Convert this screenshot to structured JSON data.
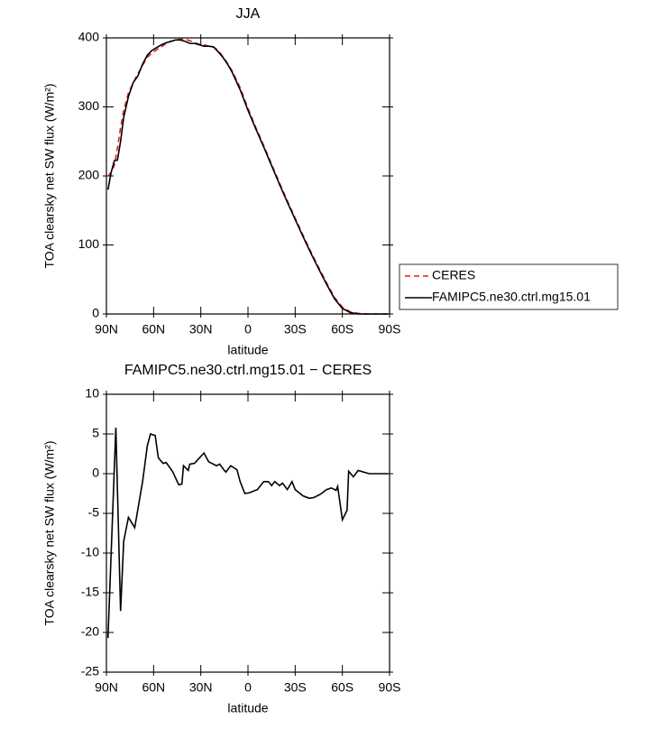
{
  "chart_data": [
    {
      "type": "line",
      "title": "JJA",
      "xlabel": "latitude",
      "ylabel": "TOA clearsky net SW flux (W/m²)",
      "xlim": [
        90,
        -90
      ],
      "xticks": [
        {
          "value": 90,
          "label": "90N"
        },
        {
          "value": 60,
          "label": "60N"
        },
        {
          "value": 30,
          "label": "30N"
        },
        0,
        {
          "value": -30,
          "label": "30S"
        },
        {
          "value": -60,
          "label": "60S"
        },
        {
          "value": -90,
          "label": "90S"
        }
      ],
      "ylim": [
        0,
        400
      ],
      "yticks": [
        0,
        100,
        200,
        300,
        400
      ],
      "legend": "right",
      "x": [
        89,
        87,
        85,
        83,
        81,
        79,
        76,
        73,
        70,
        67,
        64,
        61,
        58,
        55,
        52,
        49,
        46,
        43,
        40,
        37,
        34,
        31,
        28,
        25,
        22,
        19,
        16,
        13,
        10,
        5,
        0,
        -5,
        -10,
        -15,
        -20,
        -25,
        -30,
        -35,
        -40,
        -45,
        -50,
        -55,
        -60,
        -65,
        -70,
        -75,
        -80,
        -85,
        -89
      ],
      "series": [
        {
          "name": "CERES",
          "color": "#e41a1c",
          "dash": true,
          "values": [
            200,
            205,
            215,
            240,
            270,
            295,
            320,
            335,
            348,
            360,
            372,
            378,
            383,
            387,
            392,
            395,
            397,
            398,
            398,
            396,
            393,
            391,
            390,
            388,
            387,
            382,
            373,
            363,
            352,
            328,
            298,
            270,
            244,
            217,
            190,
            164,
            139,
            114,
            90,
            67,
            45,
            24,
            10,
            3,
            1,
            0,
            0,
            0,
            0
          ]
        },
        {
          "name": "FAMIPC5.ne30.ctrl.mg15.01",
          "color": "#000000",
          "dash": false,
          "values": [
            180,
            205,
            222,
            223,
            250,
            285,
            315,
            335,
            345,
            362,
            375,
            382,
            386,
            390,
            393,
            395,
            397,
            397,
            395,
            392,
            392,
            390,
            388,
            388,
            387,
            380,
            372,
            362,
            350,
            325,
            295,
            268,
            242,
            215,
            188,
            162,
            137,
            112,
            88,
            65,
            43,
            22,
            8,
            2,
            0,
            0,
            0,
            0,
            0
          ]
        }
      ]
    },
    {
      "type": "line",
      "title": "FAMIPC5.ne30.ctrl.mg15.01 − CERES",
      "xlabel": "latitude",
      "ylabel": "TOA clearsky net SW flux (W/m²)",
      "xlim": [
        90,
        -90
      ],
      "xticks": [
        {
          "value": 90,
          "label": "90N"
        },
        {
          "value": 60,
          "label": "60N"
        },
        {
          "value": 30,
          "label": "30N"
        },
        0,
        {
          "value": -30,
          "label": "30S"
        },
        {
          "value": -60,
          "label": "60S"
        },
        {
          "value": -90,
          "label": "90S"
        }
      ],
      "ylim": [
        -25,
        10
      ],
      "yticks": [
        -25,
        -20,
        -15,
        -10,
        -5,
        0,
        5,
        10
      ],
      "x": [
        89,
        84,
        81,
        79,
        76,
        72,
        67,
        64,
        62,
        59,
        57,
        54,
        52,
        48,
        44,
        42,
        41,
        38,
        37,
        34,
        28,
        25,
        20,
        18,
        15,
        14,
        11,
        7,
        5,
        2,
        -1,
        -6,
        -10,
        -13,
        -15,
        -17,
        -20,
        -22,
        -25,
        -28,
        -30,
        -35,
        -39,
        -42,
        -46,
        -50,
        -53,
        -56,
        -57,
        -60,
        -63,
        -64,
        -67,
        -70,
        -77,
        -89
      ],
      "series": [
        {
          "color": "#000000",
          "values": [
            -20.7,
            5.8,
            -17.3,
            -8.5,
            -5.5,
            -6.8,
            -1,
            3.5,
            5,
            4.8,
            2,
            1.3,
            1.4,
            0.3,
            -1.4,
            -1.3,
            1,
            0.4,
            1.2,
            1.3,
            2.6,
            1.5,
            1,
            1.2,
            0.4,
            0.2,
            1,
            0.5,
            -1,
            -2.5,
            -2.4,
            -2,
            -1,
            -1,
            -1.5,
            -1,
            -1.5,
            -1.2,
            -2,
            -1,
            -2,
            -2.8,
            -3.1,
            -3,
            -2.6,
            -2,
            -1.8,
            -2.1,
            -1.6,
            -5.8,
            -4.6,
            0.3,
            -0.4,
            0.4,
            0,
            0
          ]
        }
      ]
    }
  ]
}
